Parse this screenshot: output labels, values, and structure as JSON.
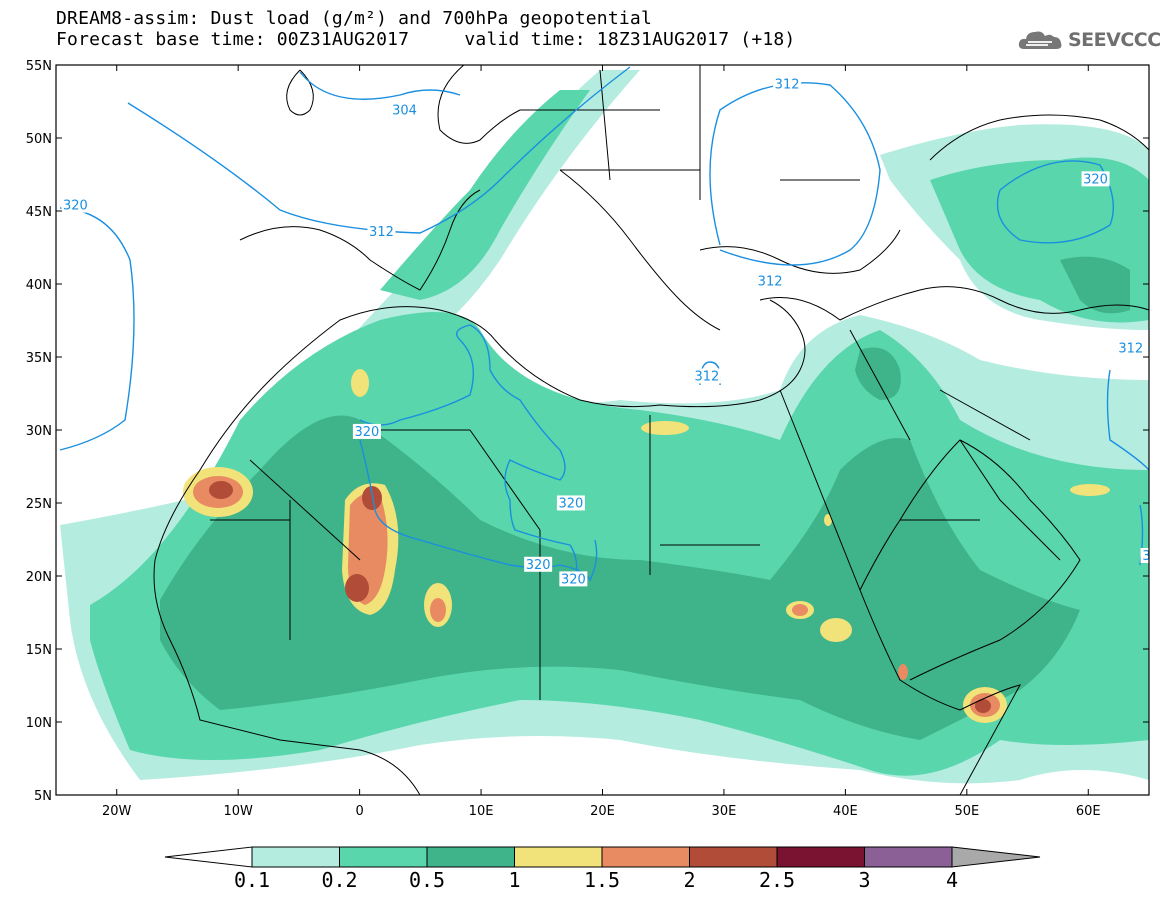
{
  "title": {
    "line1": "DREAM8-assim: Dust load (g/m²) and 700hPa geopotential",
    "line2": "Forecast base time: 00Z31AUG2017     valid time: 18Z31AUG2017 (+18)"
  },
  "logo": {
    "text": "SEEVCCC",
    "icon": "cloud-logo-icon"
  },
  "map": {
    "lon_range": [
      -25,
      65
    ],
    "lat_range": [
      5,
      55
    ],
    "x_ticks": [
      {
        "lon": -20,
        "label": "20W"
      },
      {
        "lon": -10,
        "label": "10W"
      },
      {
        "lon": 0,
        "label": "0"
      },
      {
        "lon": 10,
        "label": "10E"
      },
      {
        "lon": 20,
        "label": "20E"
      },
      {
        "lon": 30,
        "label": "30E"
      },
      {
        "lon": 40,
        "label": "40E"
      },
      {
        "lon": 50,
        "label": "50E"
      },
      {
        "lon": 60,
        "label": "60E"
      }
    ],
    "y_ticks": [
      {
        "lat": 55,
        "label": "55N"
      },
      {
        "lat": 50,
        "label": "50N"
      },
      {
        "lat": 45,
        "label": "45N"
      },
      {
        "lat": 40,
        "label": "40N"
      },
      {
        "lat": 35,
        "label": "35N"
      },
      {
        "lat": 30,
        "label": "30N"
      },
      {
        "lat": 25,
        "label": "25N"
      },
      {
        "lat": 20,
        "label": "20N"
      },
      {
        "lat": 15,
        "label": "15N"
      },
      {
        "lat": 10,
        "label": "10N"
      },
      {
        "lat": 5,
        "label": "5N"
      }
    ],
    "contour_color": "#1a8fe0",
    "contour_labels": [
      {
        "text": "304",
        "lon": 3.7,
        "lat": 51.8
      },
      {
        "text": "312",
        "lon": 35.2,
        "lat": 53.6
      },
      {
        "text": "320",
        "lon": 60.6,
        "lat": 47.1
      },
      {
        "text": "320",
        "lon": -23.4,
        "lat": 45.3
      },
      {
        "text": "312",
        "lon": 1.8,
        "lat": 43.5
      },
      {
        "text": "312",
        "lon": 33.8,
        "lat": 40.1
      },
      {
        "text": "312",
        "lon": 63.5,
        "lat": 35.5
      },
      {
        "text": "312",
        "lon": 28.6,
        "lat": 33.6
      },
      {
        "text": "320",
        "lon": 0.6,
        "lat": 29.8
      },
      {
        "text": "320",
        "lon": 17.4,
        "lat": 24.9
      },
      {
        "text": "320",
        "lon": 14.7,
        "lat": 20.7
      },
      {
        "text": "320",
        "lon": 17.6,
        "lat": 19.7
      },
      {
        "text": "3",
        "lon": 64.8,
        "lat": 21.3
      }
    ]
  },
  "legend": {
    "labels": [
      "0.1",
      "0.2",
      "0.5",
      "1",
      "1.5",
      "2",
      "2.5",
      "3",
      "4"
    ],
    "colors": [
      "#ffffff",
      "#b4ece0",
      "#59d6ab",
      "#3fb38a",
      "#f2e27a",
      "#e88b62",
      "#b04c38",
      "#7a1232",
      "#8a6096",
      "#a9a9a9"
    ]
  }
}
